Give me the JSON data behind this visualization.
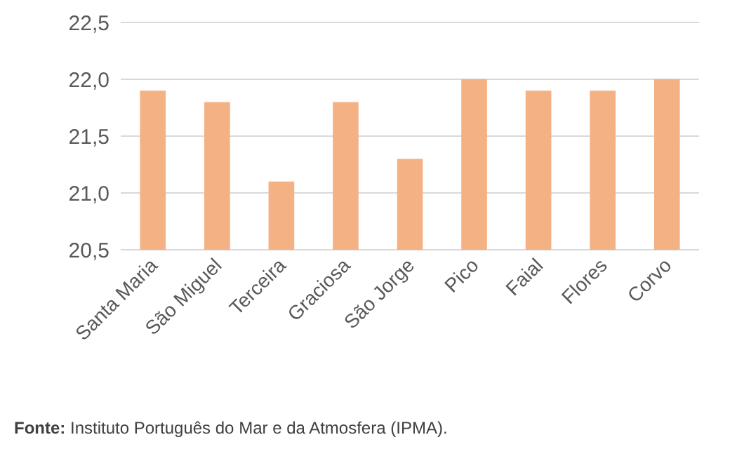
{
  "chart_data": {
    "type": "bar",
    "categories": [
      "Santa Maria",
      "São Miguel",
      "Terceira",
      "Graciosa",
      "São Jorge",
      "Pico",
      "Faial",
      "Flores",
      "Corvo"
    ],
    "values": [
      21.9,
      21.8,
      21.1,
      21.8,
      21.3,
      22.0,
      21.9,
      21.9,
      22.0
    ],
    "color": "#f4b183",
    "ylim": [
      20.5,
      22.5
    ],
    "yticks": [
      {
        "value": 20.5,
        "label": "20,5"
      },
      {
        "value": 21,
        "label": "21,0"
      },
      {
        "value": 21.5,
        "label": "21,5"
      },
      {
        "value": 22,
        "label": "22,0"
      },
      {
        "value": 22.5,
        "label": "22,5"
      }
    ],
    "grid": "y",
    "annotations": [
      "Fonte: Instituto Português do Mar e da Atmosfera (IPMA)."
    ]
  }
}
